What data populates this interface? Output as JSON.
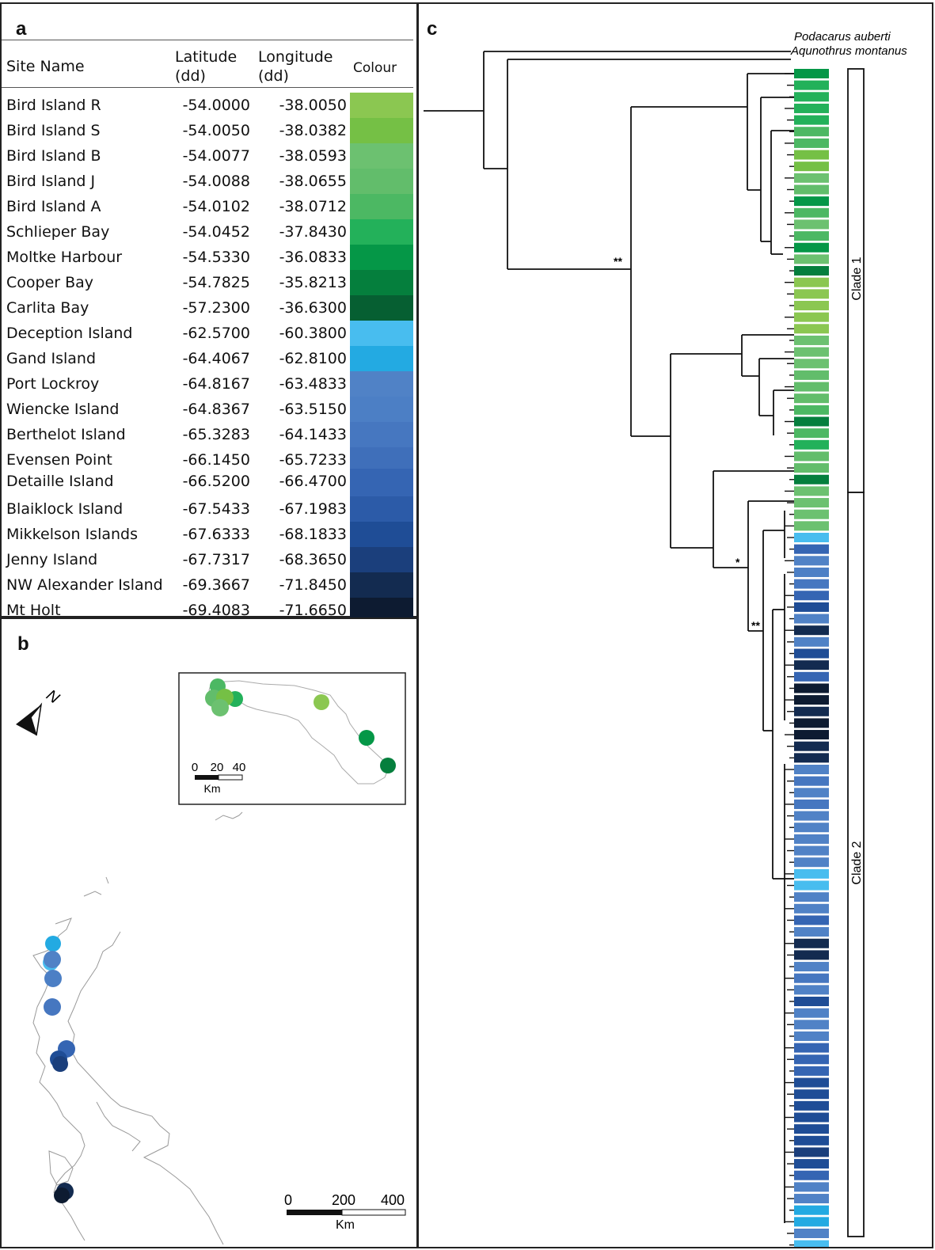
{
  "panels": {
    "a": "a",
    "b": "b",
    "c": "c"
  },
  "table": {
    "headers": {
      "site": "Site Name",
      "lat_1": "Latitude",
      "lat_2": "(dd)",
      "lon_1": "Longitude",
      "lon_2": "(dd)",
      "colour": "Colour"
    },
    "rows": [
      {
        "site": "Bird Island R",
        "lat": "-54.0000",
        "lon": "-38.0050",
        "color": "#8bc751"
      },
      {
        "site": "Bird Island S",
        "lat": "-54.0050",
        "lon": "-38.0382",
        "color": "#75c045"
      },
      {
        "site": "Bird Island B",
        "lat": "-54.0077",
        "lon": "-38.0593",
        "color": "#6cc170"
      },
      {
        "site": "Bird Island J",
        "lat": "-54.0088",
        "lon": "-38.0655",
        "color": "#62bd6b"
      },
      {
        "site": "Bird Island A",
        "lat": "-54.0102",
        "lon": "-38.0712",
        "color": "#4cb863"
      },
      {
        "site": "Schlieper  Bay",
        "lat": "-54.0452",
        "lon": "-37.8430",
        "color": "#23b15a"
      },
      {
        "site": "Moltke Harbour",
        "lat": "-54.5330",
        "lon": "-36.0833",
        "color": "#059747"
      },
      {
        "site": "Cooper Bay",
        "lat": "-54.7825",
        "lon": "-35.8213",
        "color": "#057f3d"
      },
      {
        "site": "Carlita Bay",
        "lat": "-57.2300",
        "lon": "-36.6300",
        "color": "#065f32"
      },
      {
        "site": "Deception Island",
        "lat": "-62.5700",
        "lon": "-60.3800",
        "color": "#48bdef"
      },
      {
        "site": "Gand Island",
        "lat": "-64.4067",
        "lon": "-62.8100",
        "color": "#23aae2"
      },
      {
        "site": "Port Lockroy",
        "lat": "-64.8167",
        "lon": "-63.4833",
        "color": "#5082c6"
      },
      {
        "site": "Wiencke Island",
        "lat": "-64.8367",
        "lon": "-63.5150",
        "color": "#4c7fc5"
      },
      {
        "site": "Berthelot Island",
        "lat": "-65.3283",
        "lon": "-64.1433",
        "color": "#4677c0"
      },
      {
        "site": "Evensen Point",
        "lat": "-66.1450",
        "lon": "-65.7233",
        "color": "#3f6fba"
      },
      {
        "site": "Detaille Island",
        "lat": "-66.5200",
        "lon": "-66.4700",
        "color": "#3565b3"
      },
      {
        "site": "Blaiklock Island",
        "lat": "-67.5433",
        "lon": "-67.1983",
        "color": "#2c5ba8"
      },
      {
        "site": "Mikkelson Islands",
        "lat": "-67.6333",
        "lon": "-68.1833",
        "color": "#1f4d96"
      },
      {
        "site": "Jenny Island",
        "lat": "-67.7317",
        "lon": "-68.3650",
        "color": "#1b3f7c"
      },
      {
        "site": "NW Alexander Island",
        "lat": "-69.3667",
        "lon": "-71.8450",
        "color": "#132b50"
      },
      {
        "site": "Mt Holt",
        "lat": "-69.4083",
        "lon": "-71.6650",
        "color": "#0d1b31"
      }
    ]
  },
  "map": {
    "north_label": "N",
    "inset_scale": {
      "ticks": [
        "0",
        "20",
        "40"
      ],
      "unit": "Km"
    },
    "main_scale": {
      "ticks": [
        "0",
        "200",
        "400"
      ],
      "unit": "Km"
    }
  },
  "tree": {
    "outgroup_taxa": [
      "Podacarus auberti",
      "Aqunothrus montanus"
    ],
    "support_labels": [
      "**",
      "*",
      "**"
    ],
    "clades": [
      "Clade 1",
      "Clade 2"
    ],
    "colors": {
      "bird_r": "#8bc751",
      "bird_s": "#75c045",
      "bird_b": "#6cc170",
      "bird_j": "#62bd6b",
      "bird_a": "#4cb863",
      "schlieper": "#23b15a",
      "moltke": "#059747",
      "cooper": "#057f3d",
      "carlita": "#065f32",
      "deception": "#48bdef",
      "gand": "#23aae2",
      "lockroy": "#5082c6",
      "wiencke": "#4c7fc5",
      "berthelot": "#4677c0",
      "evensen": "#3f6fba",
      "detaille": "#3565b3",
      "blaiklock": "#2c5ba8",
      "mikkelson": "#1f4d96",
      "jenny": "#1b3f7c",
      "alexander": "#132b50",
      "holt": "#0d1b31"
    }
  }
}
